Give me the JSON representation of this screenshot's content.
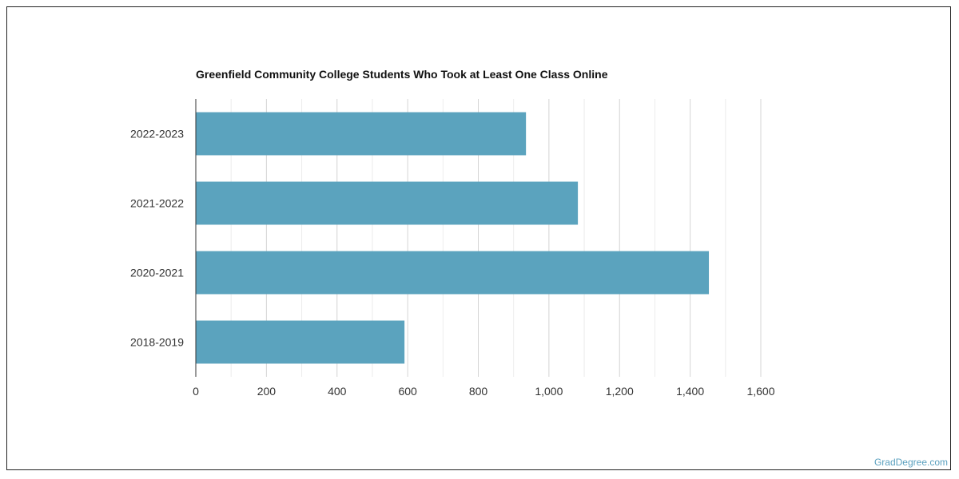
{
  "chart_data": {
    "type": "bar",
    "orientation": "horizontal",
    "title": "Greenfield Community College Students Who Took at Least One Class Online",
    "categories": [
      "2022-2023",
      "2021-2022",
      "2020-2021",
      "2018-2019"
    ],
    "values": [
      935,
      1082,
      1453,
      591
    ],
    "xlim": [
      0,
      1600
    ],
    "xticks": [
      0,
      200,
      400,
      600,
      800,
      1000,
      1200,
      1400,
      1600
    ],
    "xtick_labels": [
      "0",
      "200",
      "400",
      "600",
      "800",
      "1,000",
      "1,200",
      "1,400",
      "1,600"
    ],
    "grid": true,
    "bar_color": "#5ba3be"
  },
  "watermark": "GradDegree.com"
}
